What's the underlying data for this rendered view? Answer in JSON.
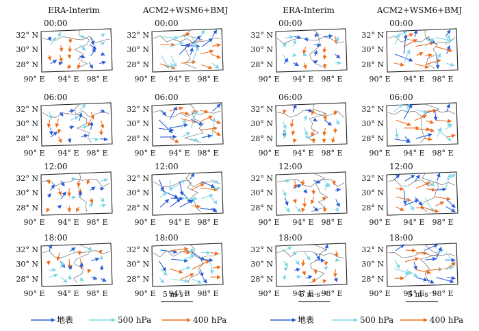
{
  "headers": [
    "ERA-Interim",
    "ACM2+WSM6+BMJ",
    "ERA-Interim",
    "ACM2+WSM6+BMJ"
  ],
  "times": [
    "00:00",
    "06:00",
    "12:00",
    "18:00"
  ],
  "lat_labels": [
    "32° N",
    "30° N",
    "28° N"
  ],
  "lon_labels": [
    "90° E",
    "94° E",
    "98° E"
  ],
  "scale_label": "5 m·s⁻¹",
  "legend": [
    {
      "label": "地表",
      "color": "#2a5fd6"
    },
    {
      "label": "500 hPa",
      "color": "#7fd6e6"
    },
    {
      "label": "400 hPa",
      "color": "#ef6c1a"
    }
  ]
}
